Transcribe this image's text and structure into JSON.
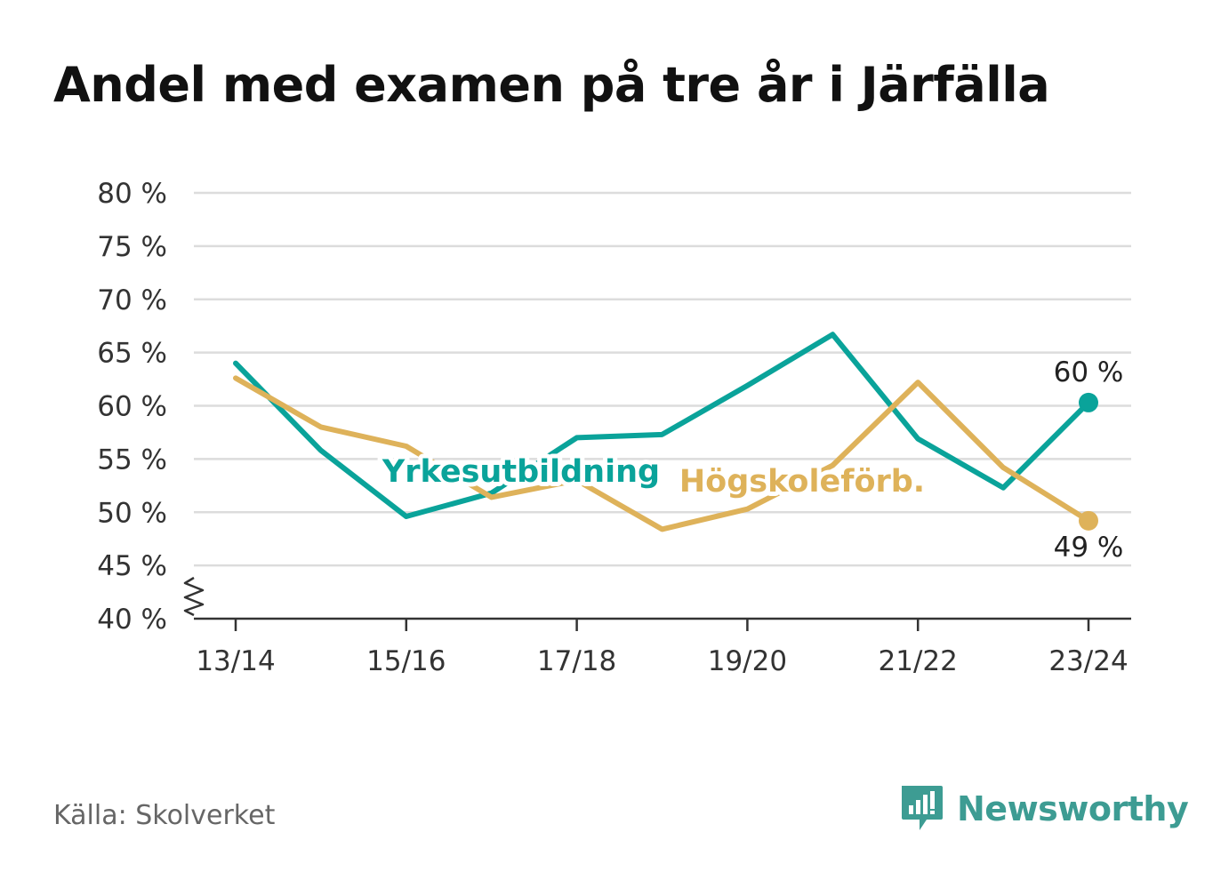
{
  "chart_data": {
    "type": "line",
    "title": "Andel med examen på tre år i Järfälla",
    "categories": [
      "13/14",
      "14/15",
      "15/16",
      "16/17",
      "17/18",
      "18/19",
      "19/20",
      "20/21",
      "21/22",
      "22/23",
      "23/24"
    ],
    "x_tick_labels": [
      "13/14",
      "15/16",
      "17/18",
      "19/20",
      "21/22",
      "23/24"
    ],
    "y_tick_labels": [
      "40 %",
      "45 %",
      "50 %",
      "55 %",
      "60 %",
      "65 %",
      "70 %",
      "75 %",
      "80 %"
    ],
    "ylim": [
      40,
      80
    ],
    "y_ticks": [
      40,
      45,
      50,
      55,
      60,
      65,
      70,
      75,
      80
    ],
    "y_axis_break": true,
    "grid": true,
    "series": [
      {
        "name": "Yrkesutbildning",
        "color": "#0aa39a",
        "values": [
          64.0,
          55.8,
          49.6,
          51.8,
          57.0,
          57.3,
          61.9,
          66.7,
          56.9,
          52.3,
          60.3
        ],
        "end_label": "60 %"
      },
      {
        "name": "Högskoleförb.",
        "color": "#deb25a",
        "values": [
          62.6,
          58.0,
          56.2,
          51.4,
          53.0,
          48.4,
          50.3,
          54.4,
          62.2,
          54.2,
          49.2
        ],
        "end_label": "49 %"
      }
    ]
  },
  "footer": {
    "source": "Källa: Skolverket",
    "brand": "Newsworthy"
  }
}
